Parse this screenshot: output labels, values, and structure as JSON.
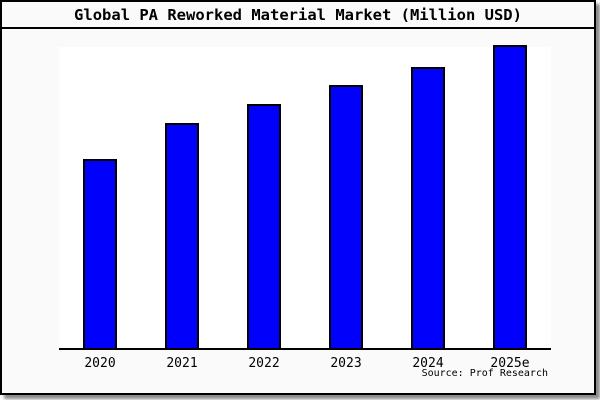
{
  "header": {
    "title": "Global PA Reworked Material Market (Million USD)"
  },
  "footer": {
    "source": "Source: Prof Research"
  },
  "colors": {
    "bar_fill": "#0101fb",
    "bar_border": "#000000",
    "card_background": "#fafafa",
    "plot_background": "#ffffff",
    "axis": "#000000"
  },
  "chart_data": {
    "type": "bar",
    "title": "Global PA Reworked Material Market (Million USD)",
    "categories": [
      "2020",
      "2021",
      "2022",
      "2023",
      "2024",
      "2025e"
    ],
    "values": [
      189,
      225,
      244,
      263,
      281,
      303
    ],
    "xlabel": "",
    "ylabel": "",
    "ylim": [
      0,
      303
    ],
    "value_note": "no y-axis scale shown; values are relative bar heights in px",
    "grid": false,
    "legend": false,
    "annotation": "Source: Prof Research"
  }
}
